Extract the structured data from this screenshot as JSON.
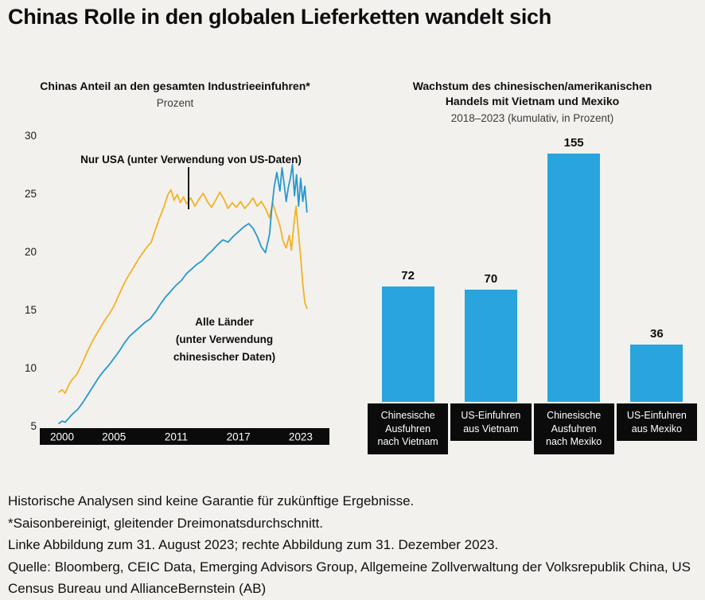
{
  "page": {
    "title": "Chinas Rolle in den globalen Lieferketten wandelt sich",
    "background": "#F2F1EE"
  },
  "colors": {
    "yellow": "#F4B223",
    "blue": "#2798CE",
    "bar_blue": "#29A4DC",
    "black": "#0B0B0B",
    "white": "#FFFFFF"
  },
  "chart_data": [
    {
      "type": "line",
      "title": "Chinas Anteil an den gesamten Industrieeinfuhren*",
      "subtitle": "Prozent",
      "ylabel": "Prozent",
      "ylim": [
        4,
        31
      ],
      "yticks": [
        30,
        25,
        20,
        15,
        10,
        5
      ],
      "xticks": [
        2000,
        2005,
        2011,
        2017,
        2023
      ],
      "xlim": [
        1999.7,
        2023.8
      ],
      "grid": false,
      "legend": "inline-annotations",
      "series": [
        {
          "name": "Nur USA (unter Verwendung von US-Daten)",
          "color": "#F4B223",
          "points": [
            [
              1999.7,
              7.9
            ],
            [
              2000,
              8.1
            ],
            [
              2000.3,
              7.8
            ],
            [
              2000.7,
              8.6
            ],
            [
              2001,
              9.0
            ],
            [
              2001.4,
              9.4
            ],
            [
              2001.8,
              10.1
            ],
            [
              2002.2,
              10.9
            ],
            [
              2002.6,
              11.7
            ],
            [
              2003,
              12.4
            ],
            [
              2003.4,
              13.0
            ],
            [
              2003.8,
              13.6
            ],
            [
              2004.2,
              14.2
            ],
            [
              2004.6,
              14.7
            ],
            [
              2005,
              15.3
            ],
            [
              2005.4,
              16.1
            ],
            [
              2005.8,
              16.9
            ],
            [
              2006.2,
              17.6
            ],
            [
              2006.6,
              18.2
            ],
            [
              2007,
              18.8
            ],
            [
              2007.4,
              19.4
            ],
            [
              2007.8,
              19.9
            ],
            [
              2008.2,
              20.4
            ],
            [
              2008.6,
              20.8
            ],
            [
              2009,
              21.9
            ],
            [
              2009.4,
              22.9
            ],
            [
              2009.8,
              23.8
            ],
            [
              2010.2,
              24.9
            ],
            [
              2010.5,
              25.3
            ],
            [
              2010.8,
              24.4
            ],
            [
              2011.1,
              24.9
            ],
            [
              2011.4,
              24.2
            ],
            [
              2011.7,
              24.7
            ],
            [
              2012,
              24.1
            ],
            [
              2012.4,
              24.6
            ],
            [
              2012.8,
              23.9
            ],
            [
              2013.2,
              24.5
            ],
            [
              2013.6,
              25.0
            ],
            [
              2014,
              24.3
            ],
            [
              2014.4,
              23.8
            ],
            [
              2014.8,
              24.4
            ],
            [
              2015.2,
              25.1
            ],
            [
              2015.6,
              24.5
            ],
            [
              2016,
              23.7
            ],
            [
              2016.4,
              24.2
            ],
            [
              2016.8,
              23.8
            ],
            [
              2017.2,
              24.3
            ],
            [
              2017.6,
              23.7
            ],
            [
              2018,
              24.1
            ],
            [
              2018.4,
              24.6
            ],
            [
              2018.8,
              23.9
            ],
            [
              2019.2,
              24.3
            ],
            [
              2019.6,
              23.7
            ],
            [
              2020,
              22.9
            ],
            [
              2020.3,
              24.2
            ],
            [
              2020.6,
              23.3
            ],
            [
              2021,
              22.2
            ],
            [
              2021.3,
              20.9
            ],
            [
              2021.6,
              20.3
            ],
            [
              2021.9,
              21.4
            ],
            [
              2022.1,
              20.1
            ],
            [
              2022.35,
              22.4
            ],
            [
              2022.55,
              23.9
            ],
            [
              2022.75,
              21.9
            ],
            [
              2023,
              19.5
            ],
            [
              2023.2,
              17.2
            ],
            [
              2023.4,
              15.6
            ],
            [
              2023.6,
              15.1
            ]
          ]
        },
        {
          "name": "Alle Länder (unter Verwendung chinesischer Daten)",
          "name_lines": [
            "Alle Länder",
            "(unter Verwendung",
            "chinesischer Daten)"
          ],
          "color": "#2798CE",
          "points": [
            [
              1999.7,
              5.2
            ],
            [
              2000,
              5.4
            ],
            [
              2000.3,
              5.3
            ],
            [
              2000.7,
              5.7
            ],
            [
              2001,
              6.0
            ],
            [
              2001.5,
              6.4
            ],
            [
              2002,
              7.0
            ],
            [
              2002.5,
              7.7
            ],
            [
              2003,
              8.4
            ],
            [
              2003.5,
              9.1
            ],
            [
              2004,
              9.7
            ],
            [
              2004.5,
              10.2
            ],
            [
              2005,
              10.8
            ],
            [
              2005.5,
              11.4
            ],
            [
              2006,
              12.1
            ],
            [
              2006.5,
              12.7
            ],
            [
              2007,
              13.1
            ],
            [
              2007.5,
              13.5
            ],
            [
              2008,
              13.9
            ],
            [
              2008.5,
              14.2
            ],
            [
              2009,
              14.8
            ],
            [
              2009.5,
              15.5
            ],
            [
              2010,
              16.1
            ],
            [
              2010.5,
              16.6
            ],
            [
              2011,
              17.1
            ],
            [
              2011.5,
              17.5
            ],
            [
              2012,
              18.1
            ],
            [
              2012.5,
              18.5
            ],
            [
              2013,
              18.9
            ],
            [
              2013.5,
              19.2
            ],
            [
              2014,
              19.7
            ],
            [
              2014.5,
              20.1
            ],
            [
              2015,
              20.6
            ],
            [
              2015.5,
              21.0
            ],
            [
              2016,
              20.8
            ],
            [
              2016.5,
              21.3
            ],
            [
              2017,
              21.7
            ],
            [
              2017.5,
              22.1
            ],
            [
              2018,
              22.4
            ],
            [
              2018.4,
              22.0
            ],
            [
              2018.8,
              21.3
            ],
            [
              2019.2,
              20.4
            ],
            [
              2019.6,
              19.9
            ],
            [
              2020,
              21.5
            ],
            [
              2020.2,
              23.6
            ],
            [
              2020.45,
              25.6
            ],
            [
              2020.7,
              26.8
            ],
            [
              2021,
              25.2
            ],
            [
              2021.2,
              27.2
            ],
            [
              2021.4,
              25.8
            ],
            [
              2021.6,
              24.3
            ],
            [
              2021.8,
              25.5
            ],
            [
              2022,
              26.3
            ],
            [
              2022.2,
              27.5
            ],
            [
              2022.4,
              24.8
            ],
            [
              2022.6,
              26.6
            ],
            [
              2022.8,
              23.9
            ],
            [
              2023,
              26.3
            ],
            [
              2023.2,
              24.3
            ],
            [
              2023.4,
              25.6
            ],
            [
              2023.6,
              23.4
            ]
          ]
        }
      ]
    },
    {
      "type": "bar",
      "title": "Wachstum des chinesischen/amerikanischen Handels mit Vietnam und Mexiko",
      "title_lines": [
        "Wachstum des chinesischen/amerikanischen",
        "Handels mit Vietnam und Mexiko"
      ],
      "subtitle": "2018–2023 (kumulativ, in Prozent)",
      "categories": [
        "Chinesische Ausfuhren nach Vietnam",
        "US-Einfuhren aus Vietnam",
        "Chinesische Ausfuhren nach Mexiko",
        "US-Einfuhren aus Mexiko"
      ],
      "category_lines": [
        [
          "Chinesische",
          "Ausfuhren",
          "nach Vietnam"
        ],
        [
          "US-Einfuhren",
          "aus Vietnam"
        ],
        [
          "Chinesische",
          "Ausfuhren",
          "nach Mexiko"
        ],
        [
          "US-Einfuhren",
          "aus Mexiko"
        ]
      ],
      "values": [
        72,
        70,
        155,
        36
      ],
      "bar_color": "#29A4DC",
      "ylim": [
        0,
        160
      ],
      "value_labels": true,
      "legend": "none"
    }
  ],
  "footer": {
    "lines": [
      "Historische Analysen sind keine Garantie für zukünftige Ergebnisse.",
      "*Saisonbereinigt, gleitender Dreimonatsdurchschnitt.",
      "Linke Abbildung zum 31. August 2023; rechte Abbildung zum 31. Dezember 2023.",
      "Quelle: Bloomberg, CEIC Data, Emerging Advisors Group, Allgemeine Zollverwaltung der Volksrepublik China, US Census Bureau und AllianceBernstein (AB)"
    ]
  }
}
